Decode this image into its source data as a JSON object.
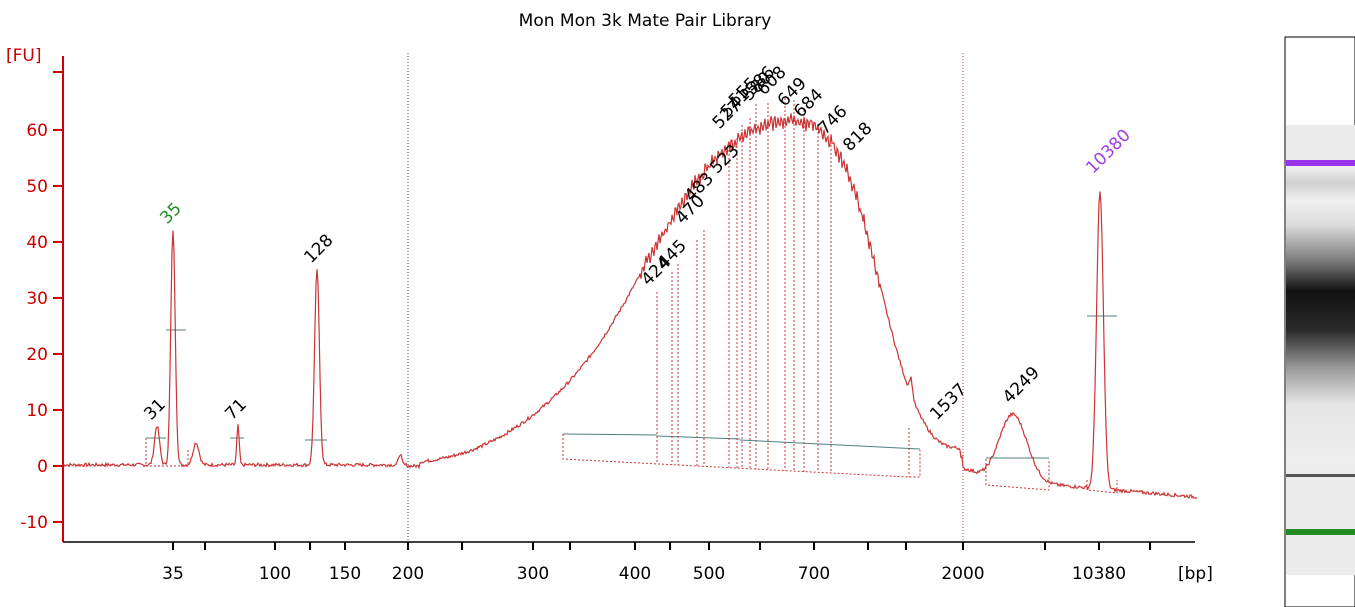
{
  "chart_data": {
    "type": "line",
    "title": "Mon Mon 3k Mate Pair Library",
    "ylabel": "[FU]",
    "xlabel": "[bp]",
    "ylim": [
      -13,
      72
    ],
    "yticks": [
      -10,
      0,
      10,
      20,
      30,
      40,
      50,
      60
    ],
    "xtick_labels": [
      "35",
      "100",
      "150",
      "200",
      "300",
      "400",
      "500",
      "700",
      "2000",
      "10380"
    ],
    "grid": false,
    "colors": {
      "axis": "#cc0000",
      "trace": "#cc3333",
      "marker_red": "#cc3333",
      "marker_purple": "#7b3fe4",
      "baseline": "#4d8080",
      "lower_marker_label": "#228b22",
      "upper_marker_label": "#a040e0",
      "peak_label": "#000000"
    },
    "peaks": [
      {
        "label": "31",
        "size_bp": 31,
        "fu": 7,
        "color": "peak"
      },
      {
        "label": "35",
        "size_bp": 35,
        "fu": 42,
        "color": "lower_marker"
      },
      {
        "label": "71",
        "size_bp": 71,
        "fu": 7,
        "color": "peak"
      },
      {
        "label": "128",
        "size_bp": 128,
        "fu": 35,
        "color": "peak"
      },
      {
        "label": "424",
        "size_bp": 424,
        "fu": 31,
        "color": "peak"
      },
      {
        "label": "445",
        "size_bp": 445,
        "fu": 34,
        "color": "peak"
      },
      {
        "label": "470",
        "size_bp": 470,
        "fu": 42,
        "color": "peak"
      },
      {
        "label": "483",
        "size_bp": 483,
        "fu": 46,
        "color": "peak"
      },
      {
        "label": "523",
        "size_bp": 523,
        "fu": 51,
        "color": "peak"
      },
      {
        "label": "527",
        "size_bp": 527,
        "fu": 59,
        "color": "peak"
      },
      {
        "label": "541",
        "size_bp": 541,
        "fu": 61,
        "color": "peak"
      },
      {
        "label": "555",
        "size_bp": 555,
        "fu": 63,
        "color": "peak"
      },
      {
        "label": "580",
        "size_bp": 580,
        "fu": 64,
        "color": "peak"
      },
      {
        "label": "586",
        "size_bp": 586,
        "fu": 65,
        "color": "peak"
      },
      {
        "label": "608",
        "size_bp": 608,
        "fu": 65,
        "color": "peak"
      },
      {
        "label": "649",
        "size_bp": 649,
        "fu": 63,
        "color": "peak"
      },
      {
        "label": "684",
        "size_bp": 684,
        "fu": 61,
        "color": "peak"
      },
      {
        "label": "746",
        "size_bp": 746,
        "fu": 58,
        "color": "peak"
      },
      {
        "label": "818",
        "size_bp": 818,
        "fu": 55,
        "color": "peak"
      },
      {
        "label": "1537",
        "size_bp": 1537,
        "fu": 7,
        "color": "peak"
      },
      {
        "label": "4249",
        "size_bp": 4249,
        "fu": 10,
        "color": "peak"
      },
      {
        "label": "10380",
        "size_bp": 10380,
        "fu": 51,
        "color": "upper_marker"
      }
    ]
  },
  "gel": {
    "lane_name": "gel-lane",
    "bands": [
      {
        "name": "upper-marker-band",
        "color": "#9933ee"
      },
      {
        "name": "sample-smear",
        "color": "#000000"
      },
      {
        "name": "band-1",
        "color": "#333333"
      },
      {
        "name": "lower-marker-band",
        "color": "#228b22"
      }
    ]
  }
}
